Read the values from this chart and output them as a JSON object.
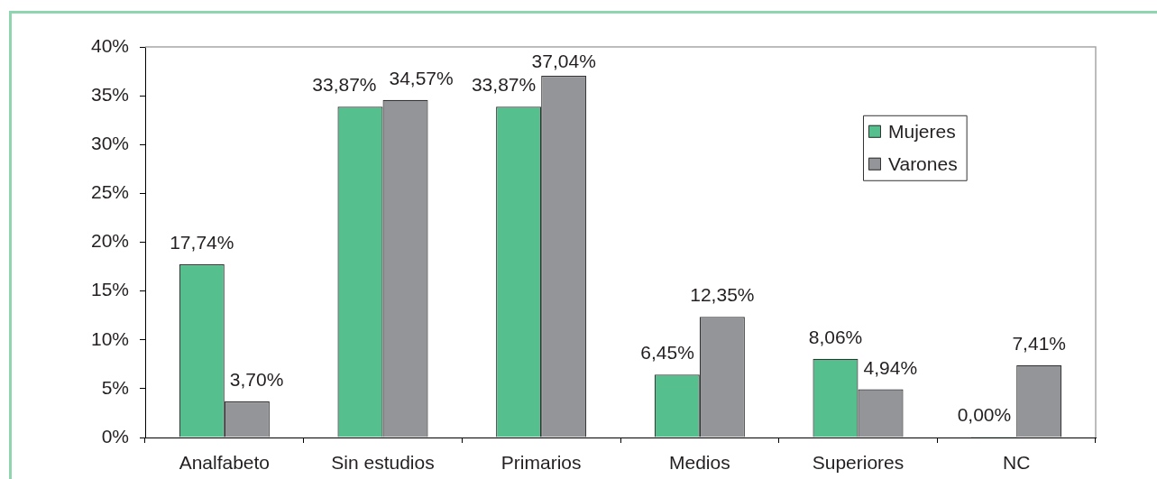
{
  "chart_data": {
    "type": "bar",
    "categories": [
      "Analfabeto",
      "Sin estudios",
      "Primarios",
      "Medios",
      "Superiores",
      "NC"
    ],
    "series": [
      {
        "name": "Mujeres",
        "color": "#55bf8e",
        "values": [
          17.74,
          33.87,
          33.87,
          6.45,
          8.06,
          0.0
        ],
        "value_labels": [
          "17,74%",
          "33,87%",
          "33,87%",
          "6,45%",
          "8,06%",
          "0,00%"
        ]
      },
      {
        "name": "Varones",
        "color": "#949599",
        "values": [
          3.7,
          34.57,
          37.04,
          12.35,
          4.94,
          7.41
        ],
        "value_labels": [
          "3,70%",
          "34,57%",
          "37,04%",
          "12,35%",
          "4,94%",
          "7,41%"
        ]
      }
    ],
    "ylim": [
      0,
      40
    ],
    "yticks": [
      {
        "value": 0,
        "label": "0%"
      },
      {
        "value": 5,
        "label": "5%"
      },
      {
        "value": 10,
        "label": "10%"
      },
      {
        "value": 15,
        "label": "15%"
      },
      {
        "value": 20,
        "label": "20%"
      },
      {
        "value": 25,
        "label": "25%"
      },
      {
        "value": 30,
        "label": "30%"
      },
      {
        "value": 35,
        "label": "35%"
      },
      {
        "value": 40,
        "label": "40%"
      }
    ],
    "legend": "top right"
  }
}
